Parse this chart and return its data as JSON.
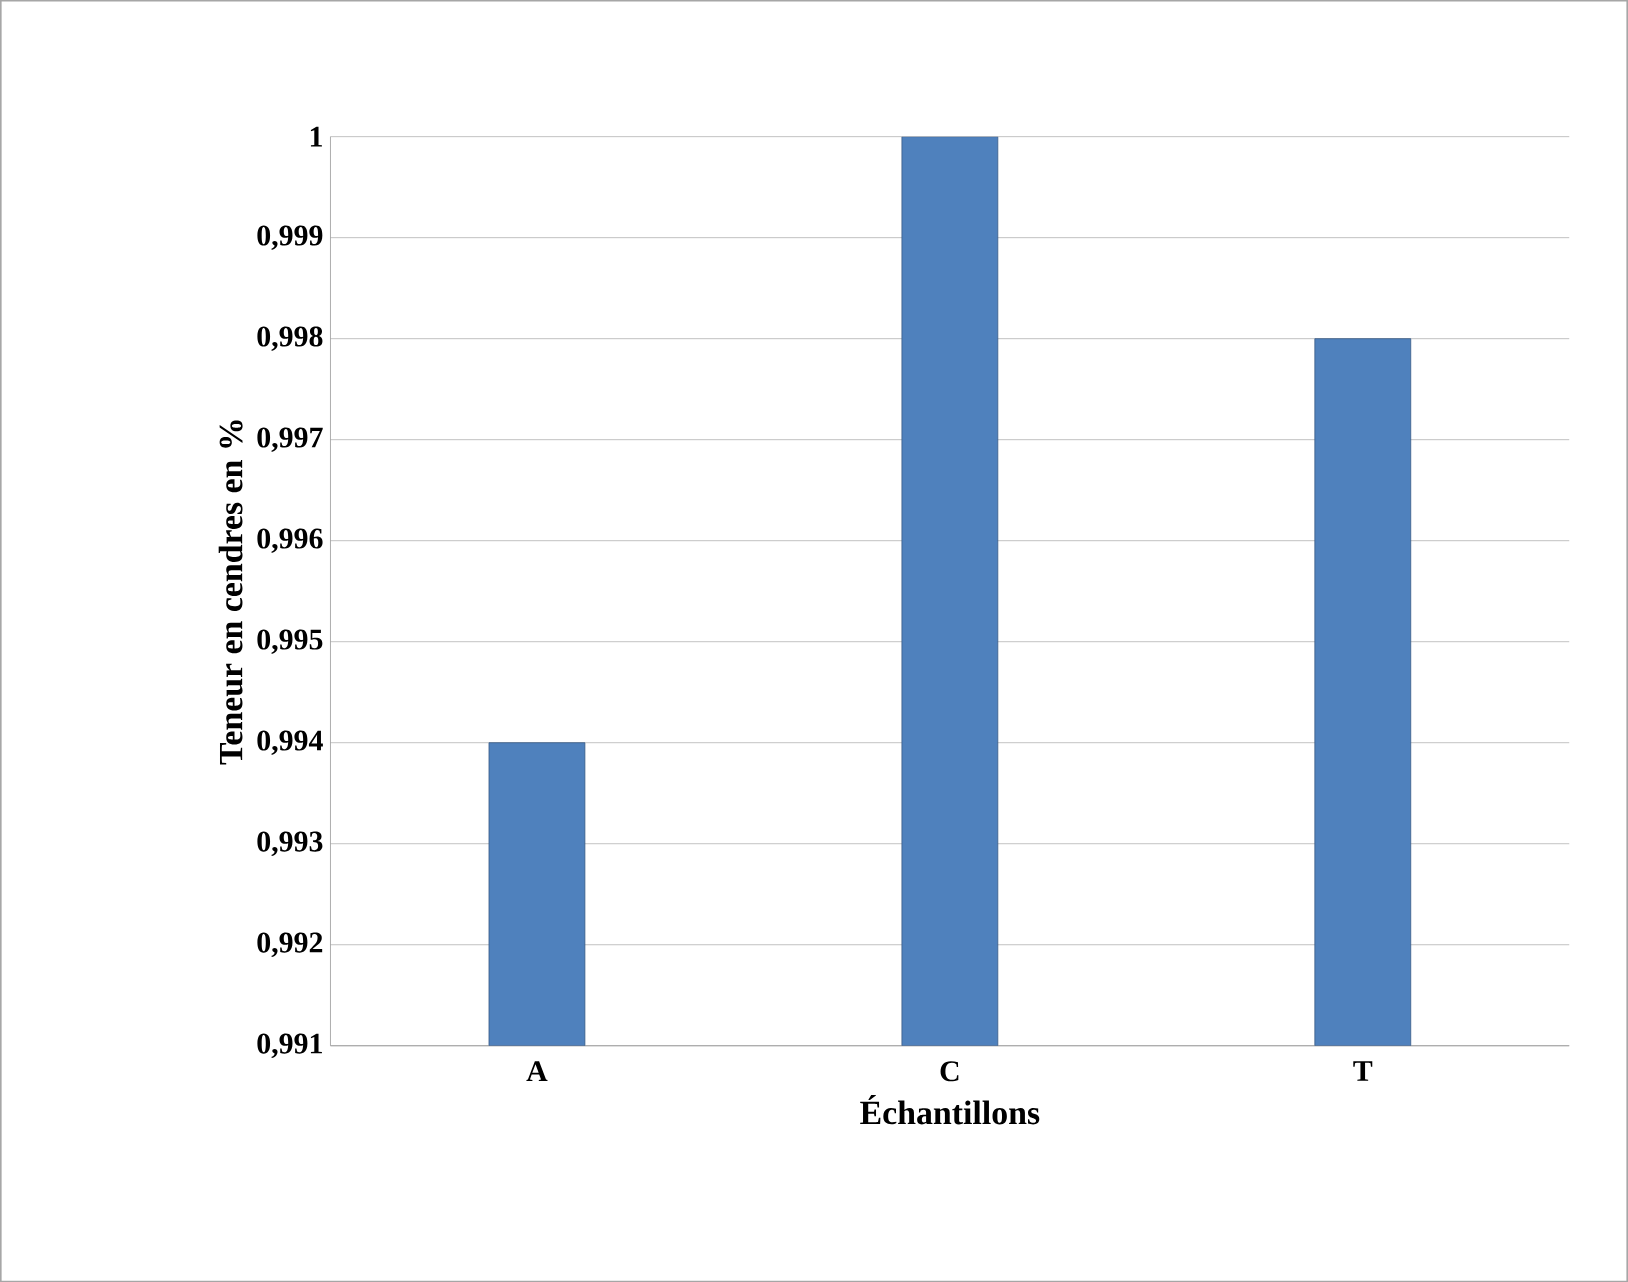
{
  "chart_data": {
    "type": "bar",
    "xlabel": "Échantillons",
    "ylabel": "Teneur en cendres en %",
    "categories": [
      "A",
      "C",
      "T"
    ],
    "values": [
      0.994,
      1.0,
      0.998
    ],
    "color": "#4f81bd",
    "ylim": [
      0.991,
      1.0
    ],
    "yticks": [
      {
        "value": 0.991,
        "label": "0,991"
      },
      {
        "value": 0.992,
        "label": "0,992"
      },
      {
        "value": 0.993,
        "label": "0,993"
      },
      {
        "value": 0.994,
        "label": "0,994"
      },
      {
        "value": 0.995,
        "label": "0,995"
      },
      {
        "value": 0.996,
        "label": "0,996"
      },
      {
        "value": 0.997,
        "label": "0,997"
      },
      {
        "value": 0.998,
        "label": "0,998"
      },
      {
        "value": 0.999,
        "label": "0,999"
      },
      1
    ],
    "grid": "y"
  }
}
